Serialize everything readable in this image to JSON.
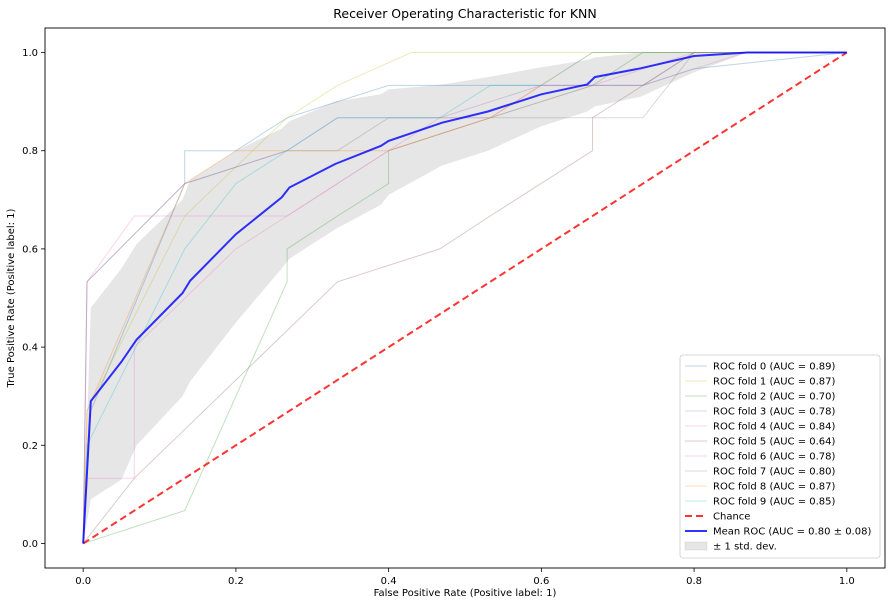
{
  "chart_data": {
    "type": "line",
    "title": "Receiver Operating Characteristic for KNN",
    "xlabel": "False Positive Rate (Positive label: 1)",
    "ylabel": "True Positive Rate (Positive label: 1)",
    "xlim": [
      -0.05,
      1.05
    ],
    "ylim": [
      -0.05,
      1.05
    ],
    "xticks": [
      0.0,
      0.2,
      0.4,
      0.6,
      0.8,
      1.0
    ],
    "yticks": [
      0.0,
      0.2,
      0.4,
      0.6,
      0.8,
      1.0
    ],
    "xtick_labels": [
      "0.0",
      "0.2",
      "0.4",
      "0.6",
      "0.8",
      "1.0"
    ],
    "ytick_labels": [
      "0.0",
      "0.2",
      "0.4",
      "0.6",
      "0.8",
      "1.0"
    ],
    "grid": false,
    "legend_position": "lower-right",
    "series": [
      {
        "name": "ROC fold 0 (AUC = 0.89)",
        "color": "#1f77b4",
        "style": "thin-faint",
        "x": [
          0,
          0.01,
          0.133,
          0.133,
          0.2,
          0.267,
          0.333,
          0.4,
          0.467,
          0.533,
          0.6,
          0.667,
          0.733,
          0.8,
          1.0
        ],
        "y": [
          0,
          0.27,
          0.733,
          0.8,
          0.8,
          0.867,
          0.9,
          0.933,
          0.933,
          0.933,
          0.933,
          0.933,
          0.933,
          0.967,
          1.0
        ]
      },
      {
        "name": "ROC fold 1 (AUC = 0.87)",
        "color": "#bcbd22",
        "style": "thin-faint",
        "x": [
          0,
          0.005,
          0.133,
          0.267,
          0.333,
          0.43,
          0.5,
          0.6,
          1.0
        ],
        "y": [
          0,
          0.27,
          0.667,
          0.867,
          0.933,
          1.0,
          1.0,
          1.0,
          1.0
        ]
      },
      {
        "name": "ROC fold 2 (AUC = 0.70)",
        "color": "#2ca02c",
        "style": "thin-faint",
        "x": [
          0,
          0.133,
          0.267,
          0.267,
          0.333,
          0.4,
          0.4,
          0.533,
          0.667,
          0.733,
          0.867,
          1.0
        ],
        "y": [
          0,
          0.067,
          0.533,
          0.6,
          0.667,
          0.733,
          0.8,
          0.867,
          0.933,
          1.0,
          1.0,
          1.0
        ]
      },
      {
        "name": "ROC fold 3 (AUC = 0.78)",
        "color": "#9467bd",
        "style": "thin-faint",
        "x": [
          0,
          0.005,
          0.133,
          0.267,
          0.333,
          0.4,
          0.467,
          0.6,
          0.733,
          0.8,
          1.0
        ],
        "y": [
          0,
          0.533,
          0.733,
          0.8,
          0.867,
          0.867,
          0.867,
          0.933,
          0.933,
          1.0,
          1.0
        ]
      },
      {
        "name": "ROC fold 4 (AUC = 0.84)",
        "color": "#e377c2",
        "style": "thin-faint",
        "x": [
          0,
          0.005,
          0.067,
          0.2,
          0.267,
          0.333,
          0.4,
          0.467,
          0.533,
          0.6,
          0.733,
          0.867,
          1.0
        ],
        "y": [
          0,
          0.533,
          0.667,
          0.667,
          0.667,
          0.733,
          0.8,
          0.867,
          0.867,
          0.933,
          0.933,
          1.0,
          1.0
        ]
      },
      {
        "name": "ROC fold 5 (AUC = 0.64)",
        "color": "#8c564b",
        "style": "thin-faint",
        "x": [
          0,
          0.067,
          0.2,
          0.333,
          0.467,
          0.533,
          0.667,
          0.667,
          0.733,
          0.8,
          1.0
        ],
        "y": [
          0,
          0.133,
          0.333,
          0.533,
          0.6,
          0.667,
          0.8,
          0.867,
          0.933,
          1.0,
          1.0
        ]
      },
      {
        "name": "ROC fold 6 (AUC = 0.78)",
        "color": "#e377c2",
        "style": "thin-faint",
        "x": [
          0,
          0.005,
          0.067,
          0.067,
          0.2,
          0.267,
          0.4,
          0.533,
          0.667,
          0.8,
          1.0
        ],
        "y": [
          0,
          0.133,
          0.133,
          0.4,
          0.6,
          0.667,
          0.8,
          0.867,
          0.933,
          1.0,
          1.0
        ]
      },
      {
        "name": "ROC fold 7 (AUC = 0.80)",
        "color": "#7f7f7f",
        "style": "thin-faint",
        "x": [
          0,
          0.005,
          0.133,
          0.267,
          0.333,
          0.4,
          0.533,
          0.6,
          0.667,
          0.733,
          0.8,
          1.0
        ],
        "y": [
          0,
          0.533,
          0.733,
          0.8,
          0.8,
          0.867,
          0.867,
          0.867,
          0.867,
          0.867,
          1.0,
          1.0
        ]
      },
      {
        "name": "ROC fold 8 (AUC = 0.87)",
        "color": "#ff7f0e",
        "style": "thin-faint",
        "x": [
          0,
          0.005,
          0.133,
          0.2,
          0.333,
          0.4,
          0.533,
          0.667,
          0.733,
          0.8,
          1.0
        ],
        "y": [
          0,
          0.27,
          0.733,
          0.8,
          0.8,
          0.8,
          0.867,
          1.0,
          1.0,
          1.0,
          1.0
        ]
      },
      {
        "name": "ROC fold 9 (AUC = 0.85)",
        "color": "#17becf",
        "style": "thin-faint",
        "x": [
          0,
          0.005,
          0.133,
          0.2,
          0.267,
          0.333,
          0.467,
          0.533,
          0.6,
          0.667,
          0.8,
          1.0
        ],
        "y": [
          0,
          0.2,
          0.6,
          0.733,
          0.8,
          0.867,
          0.867,
          0.933,
          0.933,
          1.0,
          1.0,
          1.0
        ]
      },
      {
        "name": "Chance",
        "color": "#ff0000",
        "style": "dashed",
        "x": [
          0,
          1
        ],
        "y": [
          0,
          1
        ]
      },
      {
        "name": "Mean ROC (AUC = 0.80 ± 0.08)",
        "color": "#0000ff",
        "style": "bold",
        "x": [
          0,
          0.01,
          0.05,
          0.07,
          0.13,
          0.14,
          0.2,
          0.26,
          0.27,
          0.33,
          0.39,
          0.4,
          0.47,
          0.53,
          0.6,
          0.66,
          0.67,
          0.73,
          0.8,
          0.87,
          0.93,
          1.0
        ],
        "y": [
          0,
          0.29,
          0.37,
          0.415,
          0.51,
          0.535,
          0.63,
          0.705,
          0.725,
          0.773,
          0.81,
          0.82,
          0.857,
          0.88,
          0.915,
          0.935,
          0.95,
          0.968,
          0.993,
          1.0,
          1.0,
          1.0
        ]
      }
    ],
    "std_band": {
      "name": "± 1 std. dev.",
      "color": "#808080",
      "x": [
        0,
        0.01,
        0.05,
        0.07,
        0.13,
        0.14,
        0.2,
        0.26,
        0.27,
        0.33,
        0.39,
        0.4,
        0.47,
        0.53,
        0.6,
        0.66,
        0.67,
        0.73,
        0.8,
        0.87,
        0.93,
        1.0
      ],
      "upper": [
        0,
        0.48,
        0.56,
        0.61,
        0.7,
        0.74,
        0.8,
        0.845,
        0.86,
        0.9,
        0.915,
        0.925,
        0.935,
        0.95,
        0.97,
        0.985,
        0.99,
        1.0,
        1.0,
        1.0,
        1.0,
        1.0
      ],
      "lower": [
        0,
        0.09,
        0.13,
        0.2,
        0.3,
        0.33,
        0.45,
        0.56,
        0.58,
        0.64,
        0.69,
        0.71,
        0.77,
        0.8,
        0.85,
        0.88,
        0.89,
        0.91,
        0.96,
        1.0,
        1.0,
        1.0
      ]
    }
  }
}
